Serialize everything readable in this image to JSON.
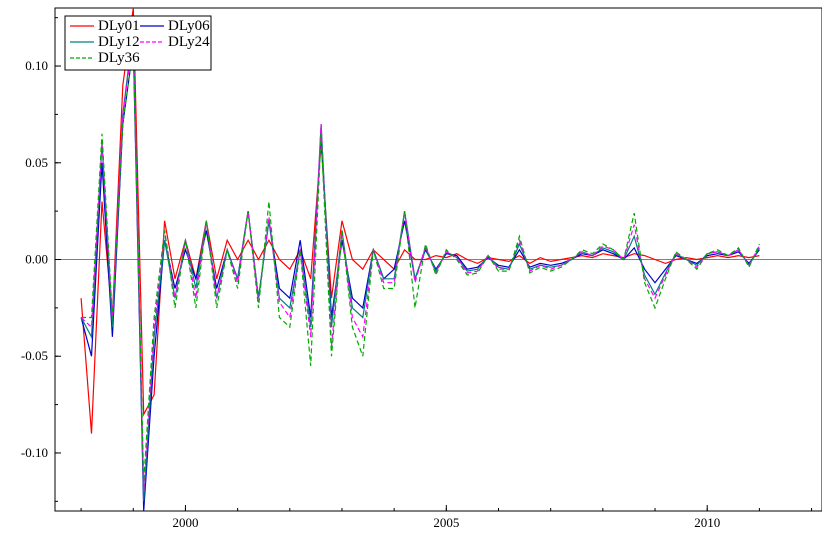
{
  "chart_data": {
    "type": "line",
    "title": "",
    "xlabel": "",
    "ylabel": "",
    "xlim": [
      1997.5,
      2012.2
    ],
    "ylim": [
      -0.13,
      0.13
    ],
    "x_ticks": [
      2000,
      2005,
      2010
    ],
    "x_tick_labels": [
      "2000",
      "2005",
      "2010"
    ],
    "y_ticks": [
      0.1,
      0.05,
      0.0,
      -0.05,
      -0.1
    ],
    "y_tick_labels": [
      "0.10",
      "0.05",
      "0.00",
      "-0.05",
      "-0.10"
    ],
    "zero_line": true,
    "grid": false,
    "legend_position": "top-left",
    "x": [
      1998.0,
      1998.2,
      1998.4,
      1998.6,
      1998.8,
      1999.0,
      1999.2,
      1999.4,
      1999.6,
      1999.8,
      2000.0,
      2000.2,
      2000.4,
      2000.6,
      2000.8,
      2001.0,
      2001.2,
      2001.4,
      2001.6,
      2001.8,
      2002.0,
      2002.2,
      2002.4,
      2002.6,
      2002.8,
      2003.0,
      2003.2,
      2003.4,
      2003.6,
      2003.8,
      2004.0,
      2004.2,
      2004.4,
      2004.6,
      2004.8,
      2005.0,
      2005.2,
      2005.4,
      2005.6,
      2005.8,
      2006.0,
      2006.2,
      2006.4,
      2006.6,
      2006.8,
      2007.0,
      2007.2,
      2007.4,
      2007.6,
      2007.8,
      2008.0,
      2008.2,
      2008.4,
      2008.6,
      2008.8,
      2009.0,
      2009.2,
      2009.4,
      2009.6,
      2009.8,
      2010.0,
      2010.2,
      2010.4,
      2010.6,
      2010.8,
      2011.0
    ],
    "series": [
      {
        "name": "DLy01",
        "color": "#ff0000",
        "dash": "solid",
        "values": [
          -0.02,
          -0.09,
          0.03,
          -0.03,
          0.09,
          0.13,
          -0.08,
          -0.07,
          0.02,
          -0.01,
          0.01,
          -0.01,
          0.02,
          -0.01,
          0.01,
          0.0,
          0.01,
          0.0,
          0.01,
          0.0,
          -0.005,
          0.005,
          -0.01,
          0.06,
          -0.02,
          0.02,
          0.0,
          -0.005,
          0.005,
          0.0,
          -0.005,
          0.005,
          0.0,
          0.0,
          0.002,
          0.001,
          0.003,
          0.0,
          -0.002,
          0.001,
          0.0,
          -0.001,
          0.002,
          -0.002,
          0.001,
          -0.001,
          0.0,
          0.001,
          0.002,
          0.001,
          0.003,
          0.002,
          0.001,
          0.003,
          0.002,
          0.0,
          -0.002,
          0.0,
          0.001,
          0.0,
          0.001,
          0.002,
          0.001,
          0.002,
          0.001,
          0.002
        ]
      },
      {
        "name": "DLy06",
        "color": "#0000cc",
        "dash": "solid",
        "values": [
          -0.03,
          -0.05,
          0.05,
          -0.04,
          0.07,
          0.11,
          -0.13,
          -0.05,
          0.01,
          -0.015,
          0.005,
          -0.01,
          0.015,
          -0.015,
          0.005,
          -0.01,
          0.025,
          -0.02,
          0.02,
          -0.015,
          -0.02,
          0.01,
          -0.03,
          0.065,
          -0.03,
          0.01,
          -0.02,
          -0.025,
          0.005,
          -0.01,
          -0.005,
          0.02,
          -0.01,
          0.005,
          -0.005,
          0.003,
          0.002,
          -0.005,
          -0.004,
          0.001,
          -0.003,
          -0.004,
          0.005,
          -0.004,
          -0.002,
          -0.003,
          -0.002,
          0.0,
          0.003,
          0.002,
          0.005,
          0.003,
          0.0,
          0.006,
          -0.005,
          -0.012,
          -0.005,
          0.002,
          0.0,
          -0.002,
          0.002,
          0.003,
          0.002,
          0.004,
          -0.002,
          0.005
        ]
      },
      {
        "name": "DLy12",
        "color": "#008080",
        "dash": "solid",
        "values": [
          -0.03,
          -0.04,
          0.06,
          -0.035,
          0.075,
          0.12,
          -0.125,
          -0.04,
          0.01,
          -0.02,
          0.01,
          -0.015,
          0.02,
          -0.02,
          0.005,
          -0.01,
          0.025,
          -0.02,
          0.02,
          -0.02,
          -0.025,
          0.005,
          -0.035,
          0.07,
          -0.035,
          0.015,
          -0.025,
          -0.03,
          0.005,
          -0.01,
          -0.01,
          0.025,
          -0.01,
          0.006,
          -0.006,
          0.004,
          0.001,
          -0.006,
          -0.005,
          0.002,
          -0.004,
          -0.005,
          0.008,
          -0.005,
          -0.003,
          -0.004,
          -0.003,
          0.0,
          0.004,
          0.002,
          0.006,
          0.004,
          0.0,
          0.012,
          -0.008,
          -0.018,
          -0.007,
          0.003,
          0.0,
          -0.003,
          0.003,
          0.004,
          0.002,
          0.005,
          -0.003,
          0.006
        ]
      },
      {
        "name": "DLy24",
        "color": "#ff00ff",
        "dash": "dashed",
        "values": [
          -0.03,
          -0.035,
          0.06,
          -0.03,
          0.075,
          0.115,
          -0.12,
          -0.035,
          0.015,
          -0.02,
          0.01,
          -0.02,
          0.02,
          -0.02,
          0.005,
          -0.012,
          0.025,
          -0.022,
          0.022,
          -0.022,
          -0.03,
          0.005,
          -0.04,
          0.07,
          -0.045,
          0.015,
          -0.03,
          -0.04,
          0.005,
          -0.012,
          -0.012,
          0.025,
          -0.012,
          0.007,
          -0.007,
          0.004,
          0.001,
          -0.007,
          -0.006,
          0.002,
          -0.005,
          -0.005,
          0.01,
          -0.006,
          -0.003,
          -0.005,
          -0.003,
          0.0,
          0.004,
          0.002,
          0.007,
          0.005,
          0.0,
          0.018,
          -0.01,
          -0.02,
          -0.008,
          0.003,
          0.0,
          -0.004,
          0.003,
          0.004,
          0.002,
          0.005,
          -0.003,
          0.007
        ]
      },
      {
        "name": "DLy36",
        "color": "#00aa00",
        "dash": "dashed",
        "values": [
          -0.03,
          -0.03,
          0.065,
          -0.03,
          0.07,
          0.11,
          -0.115,
          -0.03,
          0.015,
          -0.025,
          0.01,
          -0.025,
          0.02,
          -0.025,
          0.005,
          -0.015,
          0.025,
          -0.025,
          0.03,
          -0.03,
          -0.035,
          0.005,
          -0.055,
          0.065,
          -0.05,
          0.015,
          -0.035,
          -0.05,
          0.005,
          -0.015,
          -0.015,
          0.025,
          -0.025,
          0.008,
          -0.008,
          0.005,
          0.0,
          -0.008,
          -0.007,
          0.002,
          -0.006,
          -0.006,
          0.012,
          -0.007,
          -0.004,
          -0.006,
          -0.004,
          0.0,
          0.005,
          0.003,
          0.008,
          0.005,
          0.0,
          0.024,
          -0.012,
          -0.025,
          -0.01,
          0.004,
          0.0,
          -0.005,
          0.003,
          0.005,
          0.002,
          0.006,
          -0.004,
          0.008
        ]
      }
    ]
  }
}
